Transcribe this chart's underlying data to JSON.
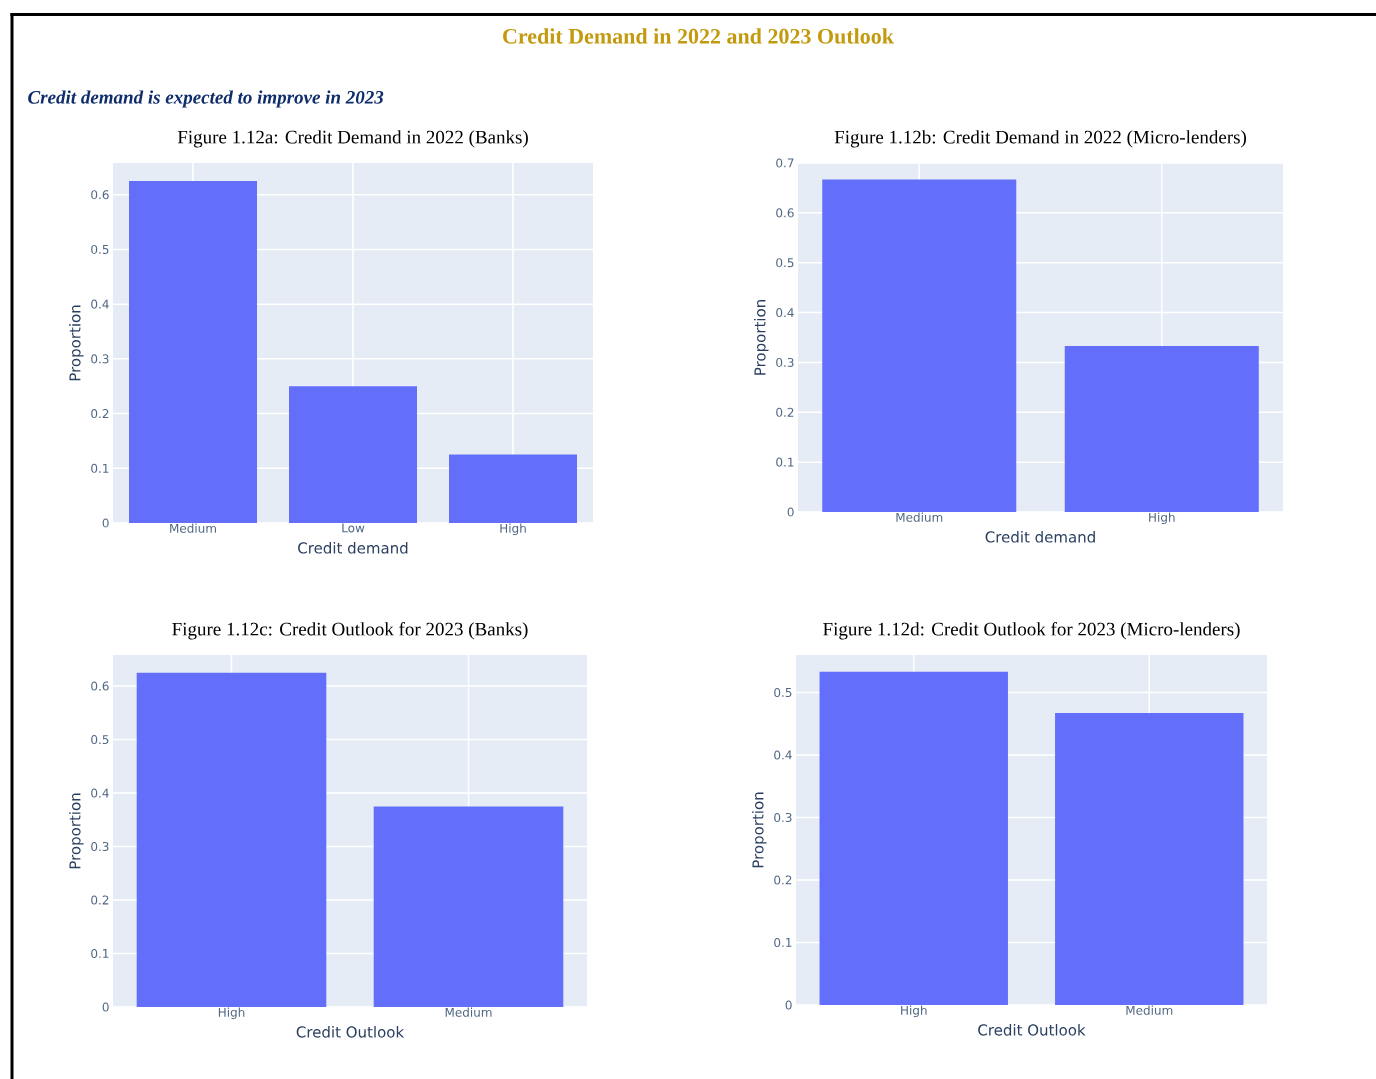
{
  "chart_data": [
    {
      "type": "other",
      "title": "Credit Demand in 2022 and 2023 Outlook",
      "subtitle": "Credit demand is expected to improve in 2023"
    },
    {
      "type": "bar",
      "title": "Figure 1.12a: Credit Demand in 2022 (Banks)",
      "xlabel": "Credit demand",
      "ylabel": "Proportion",
      "categories": [
        "Medium",
        "Low",
        "High"
      ],
      "values": [
        0.625,
        0.25,
        0.125
      ],
      "color": "#636efa",
      "ylim": [
        0,
        0.658
      ],
      "yticks": [
        0,
        0.1,
        0.2,
        0.3,
        0.4,
        0.5,
        0.6
      ],
      "grid": true
    },
    {
      "type": "bar",
      "title": "Figure 1.12b: Credit Demand in 2022 (Micro-lenders)",
      "xlabel": "Credit demand",
      "ylabel": "Proportion",
      "categories": [
        "Medium",
        "High"
      ],
      "values": [
        0.667,
        0.333
      ],
      "color": "#636efa",
      "ylim": [
        0,
        0.7
      ],
      "yticks": [
        0,
        0.1,
        0.2,
        0.3,
        0.4,
        0.5,
        0.6,
        0.7
      ],
      "grid": true
    },
    {
      "type": "bar",
      "title": "Figure 1.12c: Credit Outlook for 2023 (Banks)",
      "xlabel": "Credit Outlook",
      "ylabel": "Proportion",
      "categories": [
        "High",
        "Medium"
      ],
      "values": [
        0.625,
        0.375
      ],
      "color": "#636efa",
      "ylim": [
        0,
        0.658
      ],
      "yticks": [
        0,
        0.1,
        0.2,
        0.3,
        0.4,
        0.5,
        0.6
      ],
      "grid": true
    },
    {
      "type": "bar",
      "title": "Figure 1.12d: Credit Outlook for 2023 (Micro-lenders)",
      "xlabel": "Credit Outlook",
      "ylabel": "Proportion",
      "categories": [
        "High",
        "Medium"
      ],
      "values": [
        0.533,
        0.467
      ],
      "color": "#636efa",
      "ylim": [
        0,
        0.56
      ],
      "yticks": [
        0,
        0.1,
        0.2,
        0.3,
        0.4,
        0.5
      ],
      "grid": true
    }
  ]
}
